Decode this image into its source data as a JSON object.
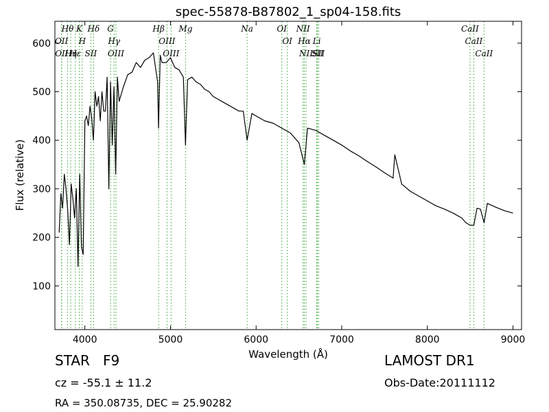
{
  "chart_data": {
    "type": "line",
    "title": "spec-55878-B87802_1_sp04-158.fits",
    "xlabel": "Wavelength (Å)",
    "ylabel": "Flux (relative)",
    "xlim": [
      3650,
      9100
    ],
    "ylim": [
      10,
      645
    ],
    "xticks": [
      4000,
      5000,
      6000,
      7000,
      8000,
      9000
    ],
    "yticks": [
      100,
      200,
      300,
      400,
      500,
      600
    ],
    "grid": false,
    "line_color": "#000000",
    "marker_line_color": "#2ca02c",
    "spectrum": {
      "x": [
        3700,
        3720,
        3740,
        3760,
        3780,
        3800,
        3820,
        3840,
        3860,
        3880,
        3900,
        3920,
        3940,
        3960,
        3980,
        4000,
        4020,
        4040,
        4060,
        4080,
        4100,
        4120,
        4140,
        4160,
        4180,
        4200,
        4220,
        4240,
        4260,
        4280,
        4300,
        4320,
        4340,
        4360,
        4380,
        4400,
        4450,
        4500,
        4550,
        4600,
        4650,
        4700,
        4750,
        4800,
        4850,
        4860,
        4880,
        4900,
        4950,
        5000,
        5050,
        5100,
        5150,
        5175,
        5200,
        5250,
        5300,
        5350,
        5400,
        5450,
        5500,
        5550,
        5600,
        5650,
        5700,
        5750,
        5800,
        5850,
        5895,
        5950,
        6000,
        6100,
        6200,
        6300,
        6400,
        6500,
        6563,
        6600,
        6700,
        6800,
        6900,
        7000,
        7100,
        7200,
        7300,
        7400,
        7500,
        7600,
        7620,
        7700,
        7800,
        7900,
        8000,
        8100,
        8200,
        8300,
        8400,
        8450,
        8500,
        8542,
        8580,
        8620,
        8662,
        8700,
        8800,
        8900,
        9000
      ],
      "y": [
        210,
        290,
        260,
        330,
        300,
        255,
        185,
        310,
        280,
        240,
        300,
        140,
        330,
        180,
        165,
        440,
        450,
        430,
        470,
        445,
        400,
        500,
        470,
        490,
        440,
        500,
        460,
        460,
        530,
        300,
        520,
        390,
        510,
        330,
        530,
        480,
        510,
        535,
        540,
        560,
        550,
        565,
        570,
        580,
        520,
        425,
        575,
        560,
        560,
        570,
        550,
        545,
        530,
        390,
        525,
        530,
        520,
        515,
        505,
        500,
        490,
        485,
        480,
        475,
        470,
        465,
        460,
        460,
        400,
        455,
        450,
        440,
        435,
        425,
        415,
        395,
        350,
        425,
        420,
        410,
        400,
        390,
        378,
        368,
        356,
        345,
        333,
        322,
        370,
        310,
        295,
        285,
        275,
        265,
        258,
        250,
        240,
        230,
        225,
        225,
        260,
        258,
        230,
        270,
        262,
        255,
        250
      ]
    },
    "line_markers": [
      {
        "name": "Hθ",
        "x": 3798
      },
      {
        "name": "OII",
        "x": 3727
      },
      {
        "name": "OII",
        "x": 3729
      },
      {
        "name": "Hη",
        "x": 3835
      },
      {
        "name": "Hε",
        "x": 3889
      },
      {
        "name": "K",
        "x": 3934
      },
      {
        "name": "H",
        "x": 3969
      },
      {
        "name": "SII",
        "x": 4070
      },
      {
        "name": "Hδ",
        "x": 4102
      },
      {
        "name": "G",
        "x": 4300
      },
      {
        "name": "Hγ",
        "x": 4341
      },
      {
        "name": "OIII",
        "x": 4363
      },
      {
        "name": "Hβ",
        "x": 4861
      },
      {
        "name": "OIII",
        "x": 4959
      },
      {
        "name": "OIII",
        "x": 5007
      },
      {
        "name": "Mg",
        "x": 5176
      },
      {
        "name": "Na",
        "x": 5895
      },
      {
        "name": "OI",
        "x": 6300
      },
      {
        "name": "OI",
        "x": 6364
      },
      {
        "name": "NII",
        "x": 6548
      },
      {
        "name": "Hα",
        "x": 6563
      },
      {
        "name": "NII",
        "x": 6583
      },
      {
        "name": "SII",
        "x": 6716
      },
      {
        "name": "Li",
        "x": 6708
      },
      {
        "name": "SII",
        "x": 6731
      },
      {
        "name": "CaII",
        "x": 8498
      },
      {
        "name": "CaII",
        "x": 8542
      },
      {
        "name": "CaII",
        "x": 8662
      }
    ]
  },
  "info": {
    "class_label": "STAR",
    "subclass": "F9",
    "cz": "cz = -55.1 ± 11.2",
    "coords": "RA = 350.08735, DEC = 25.90282",
    "survey": "LAMOST DR1",
    "obs_date": "Obs-Date:20111112"
  }
}
